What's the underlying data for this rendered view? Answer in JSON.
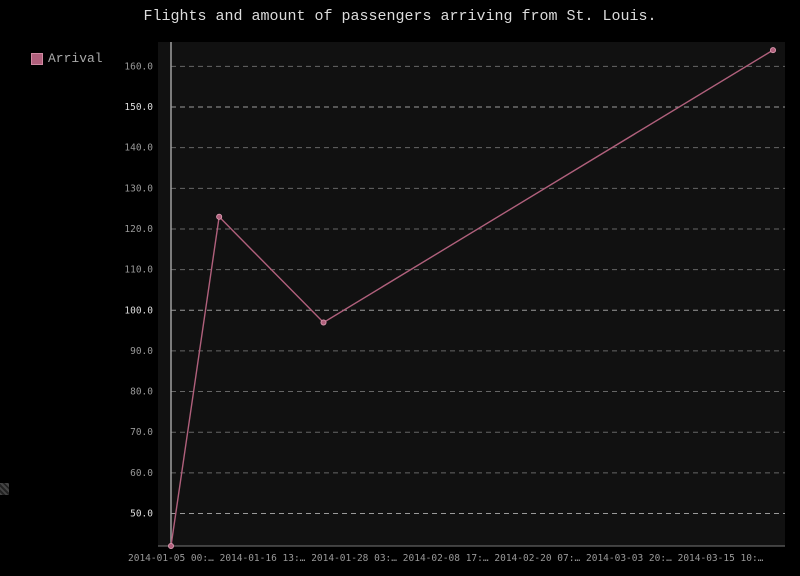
{
  "chart_data": {
    "type": "line",
    "title": "Flights and amount of passengers arriving from St. Louis.",
    "xlabel": "",
    "ylabel": "",
    "legend_position": "top-left",
    "grid": true,
    "ylim": [
      42,
      166
    ],
    "x_ticks": [
      "2014-01-05 00:…",
      "2014-01-16 13:…",
      "2014-01-28 03:…",
      "2014-02-08 17:…",
      "2014-02-20 07:…",
      "2014-03-03 20:…",
      "2014-03-15 10:…"
    ],
    "y_ticks": [
      "50.0",
      "60.0",
      "70.0",
      "80.0",
      "90.0",
      "100.0",
      "110.0",
      "120.0",
      "130.0",
      "140.0",
      "150.0",
      "160.0"
    ],
    "series": [
      {
        "name": "Arrival",
        "color": "#b0607c",
        "points": [
          {
            "x": "2014-01-05",
            "y": 42
          },
          {
            "x": "2014-01-11",
            "y": 123
          },
          {
            "x": "2014-01-24",
            "y": 97
          },
          {
            "x": "2014-03-21",
            "y": 164
          }
        ]
      }
    ]
  }
}
